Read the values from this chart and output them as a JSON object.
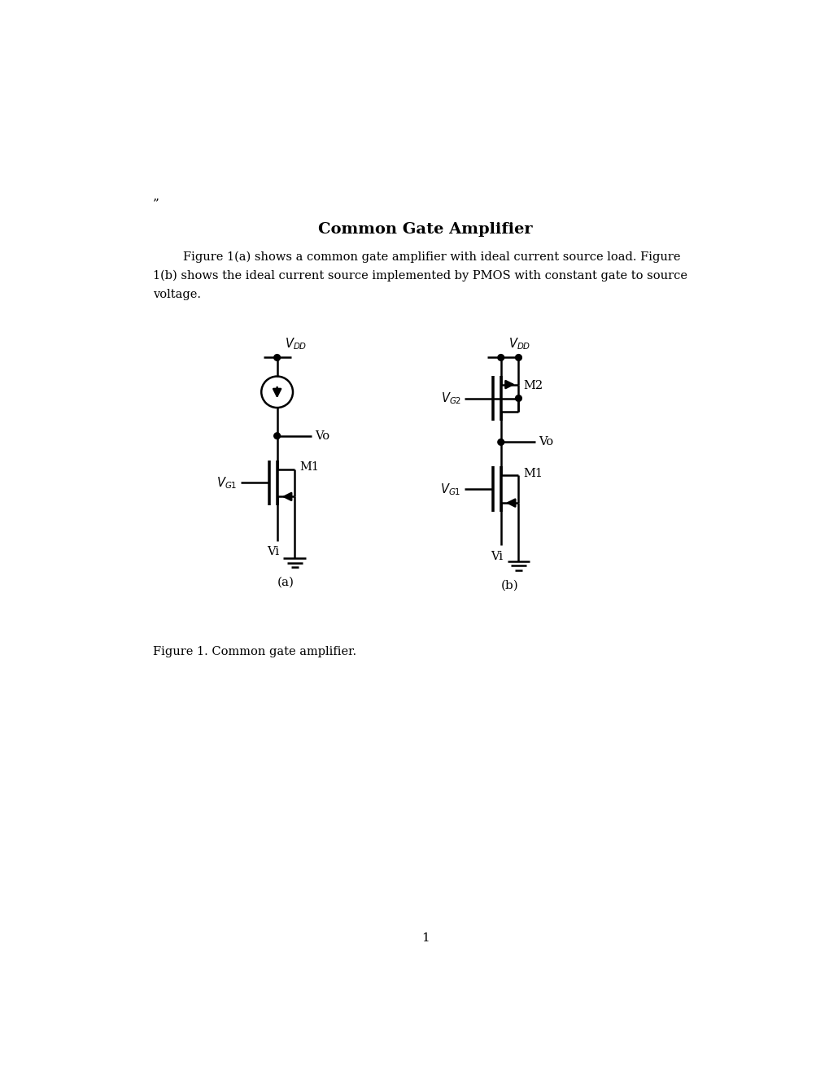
{
  "title": "Common Gate Amplifier",
  "title_fontsize": 14,
  "body_line1": "        Figure 1(a) shows a common gate amplifier with ideal current source load. Figure",
  "body_line2": "1(b) shows the ideal current source implemented by PMOS with constant gate to source",
  "body_line3": "voltage.",
  "caption": "Figure 1. Common gate amplifier.",
  "footnote": "”",
  "page_number": "1",
  "background_color": "#ffffff",
  "line_color": "#000000",
  "line_width": 1.8
}
